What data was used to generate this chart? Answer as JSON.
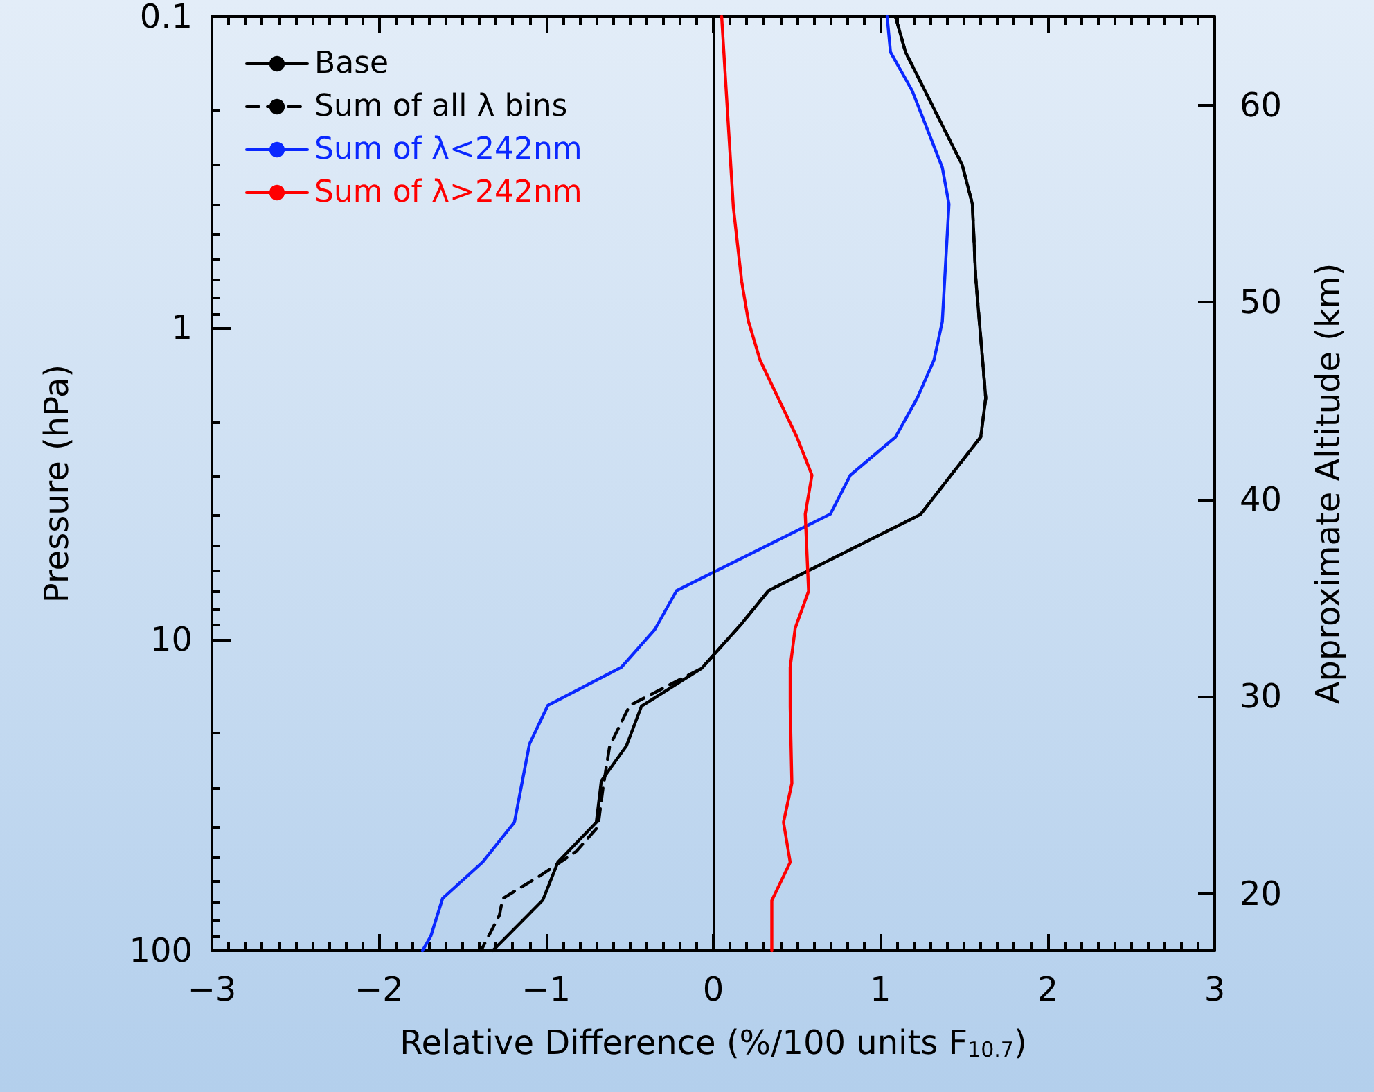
{
  "chart_data": {
    "type": "line",
    "xlabel": "Relative Difference (%/100 units F$_{10.7}$)",
    "ylabel": "Pressure (hPa)",
    "y2label": "Approximate Altitude (km)",
    "xlim": [
      -3,
      3
    ],
    "xticks": [
      -3,
      -2,
      -1,
      0,
      1,
      2,
      3
    ],
    "ylim": [
      100,
      0.1
    ],
    "yticks": [
      0.1,
      1,
      10,
      100
    ],
    "log": "y",
    "y2lim": [
      17.1,
      64.5
    ],
    "y2ticks": [
      20,
      30,
      40,
      50,
      60
    ],
    "grid": false,
    "legend": "top left",
    "marker": "none",
    "ref_lines": [
      {
        "axis": "x",
        "value": 0,
        "color": "#000000"
      }
    ],
    "series": [
      {
        "name": "Base",
        "color": "#000000",
        "line_style": "solid",
        "x": [
          1.09,
          1.15,
          1.49,
          1.55,
          1.57,
          1.63,
          1.6,
          1.24,
          0.33,
          0.17,
          -0.07,
          -0.43,
          -0.52,
          -0.67,
          -0.7,
          -0.93,
          -1.02,
          -1.32
        ],
        "values": [
          0.1,
          0.13,
          0.3,
          0.4,
          0.69,
          1.68,
          2.24,
          3.97,
          6.98,
          8.9,
          12.4,
          16.4,
          22,
          28.5,
          38.7,
          52,
          68.8,
          100
        ]
      },
      {
        "name": "Sum of all λ bins",
        "color": "#000000",
        "line_style": "dashed",
        "x": [
          1.09,
          1.15,
          1.49,
          1.55,
          1.57,
          1.63,
          1.6,
          1.24,
          0.33,
          0.17,
          -0.07,
          -0.5,
          -0.62,
          -0.66,
          -0.69,
          -0.82,
          -1.04,
          -1.26,
          -1.28,
          -1.39
        ],
        "values": [
          0.1,
          0.13,
          0.3,
          0.4,
          0.69,
          1.68,
          2.24,
          3.97,
          6.98,
          8.9,
          12.4,
          16.3,
          22,
          30,
          40,
          48,
          57.6,
          68,
          77,
          100
        ]
      },
      {
        "name": "Sum of λ<242nm",
        "color": "#0a28ff",
        "line_style": "solid",
        "x": [
          1.04,
          1.06,
          1.19,
          1.37,
          1.41,
          1.37,
          1.32,
          1.22,
          1.09,
          0.82,
          0.7,
          -0.22,
          -0.35,
          -0.55,
          -0.99,
          -1.1,
          -1.19,
          -1.38,
          -1.62,
          -1.69,
          -1.74
        ],
        "values": [
          0.1,
          0.13,
          0.173,
          0.305,
          0.4,
          0.955,
          1.27,
          1.68,
          2.24,
          2.97,
          3.96,
          6.98,
          9.3,
          12.3,
          16.3,
          21.7,
          38.7,
          51.9,
          68,
          89.7,
          100
        ]
      },
      {
        "name": "Sum of λ>242nm",
        "color": "#ff0000",
        "line_style": "solid",
        "x": [
          0.05,
          0.12,
          0.17,
          0.21,
          0.28,
          0.5,
          0.59,
          0.55,
          0.57,
          0.49,
          0.46,
          0.46,
          0.47,
          0.42,
          0.46,
          0.35,
          0.35
        ],
        "values": [
          0.1,
          0.41,
          0.71,
          0.95,
          1.27,
          2.24,
          2.97,
          3.96,
          7,
          9.2,
          12.3,
          16.5,
          29,
          38.7,
          52,
          69,
          100
        ]
      }
    ]
  }
}
